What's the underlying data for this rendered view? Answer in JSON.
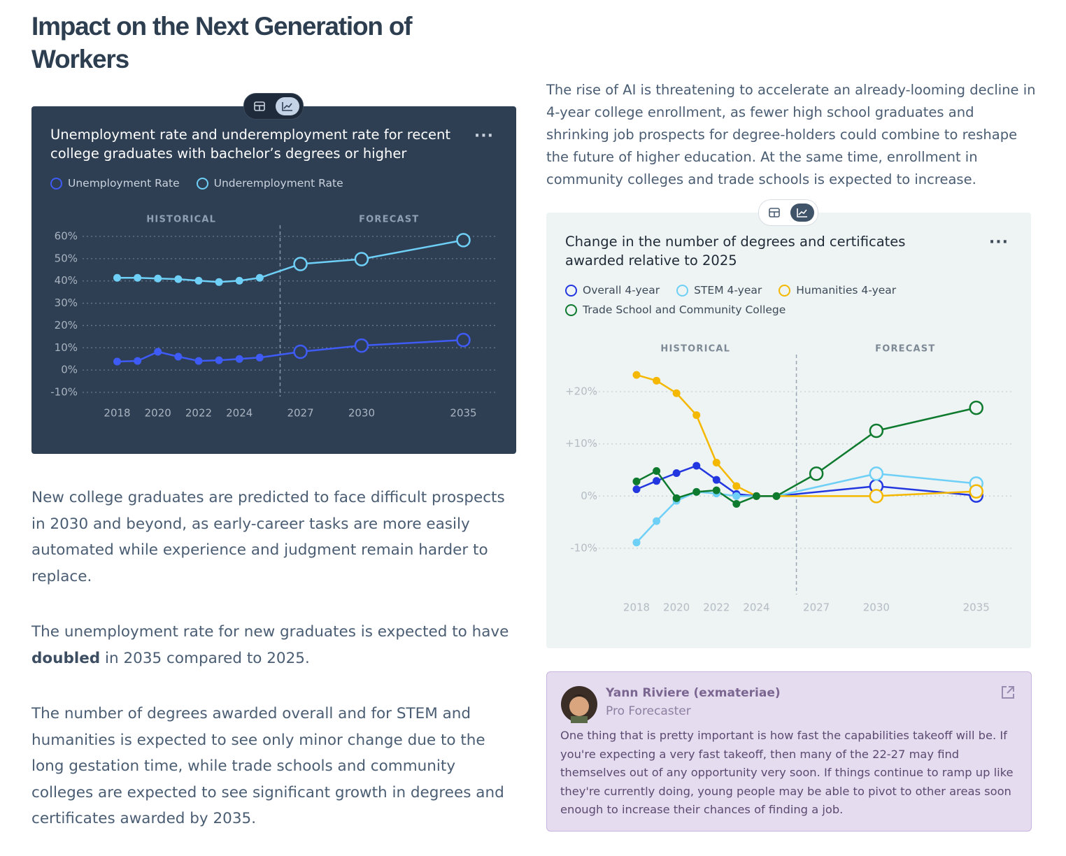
{
  "header": {
    "title": "Impact on the Next Generation of Workers"
  },
  "intro": "The rise of AI is threatening to accelerate an already-looming decline in 4-year college enrollment, as fewer high school graduates and shrinking job prospects for degree-holders could combine to reshape the future of higher education. At the same time, enrollment in community colleges and trade schools is expected to increase.",
  "paragraphs": [
    [
      "New college graduates are predicted to face difficult prospects in 2030 and beyond, as early-career tasks are more easily automated while experience and judgment remain harder to replace."
    ],
    [
      "The unemployment rate for new graduates is expected to have ",
      "doubled",
      " in 2035 compared to 2025."
    ],
    [
      "The number of degrees awarded overall and for STEM and humanities is expected to see only minor change due to the long gestation time, while trade schools and community colleges are expected to see significant growth in degrees and certificates awarded by 2035."
    ]
  ],
  "comment": {
    "author": "Yann Riviere (exmateriae)",
    "role": "Pro Forecaster",
    "text": "One thing that is pretty important is how fast the capabilities takeoff will be. If you're expecting a very fast takeoff, then many of the 22-27 may find themselves out of any opportunity very soon. If things continue to ramp up like they're currently doing, young people may be able to pivot to other areas soon enough to increase their chances of finding a job."
  },
  "chart_data": [
    {
      "type": "line",
      "title": "Unemployment rate and underemployment rate for recent college graduates with bachelor’s degrees or higher",
      "annotations": [
        "HISTORICAL",
        "FORECAST"
      ],
      "forecast_start": 2026,
      "legend": "top-left",
      "grid": true,
      "x": [
        2018,
        2019,
        2020,
        2021,
        2022,
        2023,
        2024,
        2025,
        2027,
        2030,
        2035
      ],
      "xlim": [
        2016.3,
        2036.7
      ],
      "xticks": [
        2018,
        2020,
        2022,
        2024,
        2027,
        2030,
        2035
      ],
      "ylim": [
        -10,
        60
      ],
      "yticks": [
        {
          "value": -10,
          "label": "-10%"
        },
        {
          "value": 0,
          "label": "0%"
        },
        {
          "value": 10,
          "label": "10%"
        },
        {
          "value": 20,
          "label": "20%"
        },
        {
          "value": 30,
          "label": "30%"
        },
        {
          "value": 40,
          "label": "40%"
        },
        {
          "value": 50,
          "label": "50%"
        },
        {
          "value": 60,
          "label": "60%"
        }
      ],
      "series": [
        {
          "name": "Unemployment Rate",
          "color": "#3f5bf5",
          "values": [
            3.8,
            4.1,
            8.2,
            6.0,
            4.1,
            4.4,
            5.0,
            5.6,
            8.2,
            11,
            13.5
          ]
        },
        {
          "name": "Underemployment Rate",
          "color": "#6fd0f7",
          "values": [
            41.4,
            41.4,
            41.1,
            40.8,
            40.1,
            39.5,
            40.1,
            41.4,
            47.6,
            49.8,
            58.3
          ]
        }
      ]
    },
    {
      "type": "line",
      "title": "Change in the number of degrees and certificates awarded relative to 2025",
      "annotations": [
        "HISTORICAL",
        "FORECAST"
      ],
      "forecast_start": 2026,
      "legend": "top-left",
      "grid": true,
      "xlim": [
        2015.9,
        2036.9
      ],
      "xticks": [
        2018,
        2020,
        2022,
        2024,
        2027,
        2030,
        2035
      ],
      "ylim": [
        -10,
        20
      ],
      "yticks": [
        {
          "value": -10,
          "label": "-10%"
        },
        {
          "value": 0,
          "label": "0%"
        },
        {
          "value": 10,
          "label": "+10%"
        },
        {
          "value": 20,
          "label": "+20%"
        }
      ],
      "series": [
        {
          "name": "Overall 4-year",
          "color": "#2337e0",
          "x": [
            2018,
            2019,
            2020,
            2021,
            2022,
            2023,
            2024,
            2025,
            2030,
            2035
          ],
          "values": [
            1.3,
            2.9,
            4.4,
            5.8,
            3.1,
            0.4,
            0,
            0,
            1.9,
            0.1
          ]
        },
        {
          "name": "STEM 4-year",
          "color": "#6fd0f7",
          "x": [
            2018,
            2019,
            2020,
            2021,
            2022,
            2023,
            2024,
            2025,
            2030,
            2035
          ],
          "values": [
            -8.9,
            -4.8,
            -0.9,
            0.8,
            0.5,
            0,
            0,
            0,
            4.3,
            2.4
          ]
        },
        {
          "name": "Humanities 4-year",
          "color": "#f5b800",
          "x": [
            2018,
            2019,
            2020,
            2021,
            2022,
            2023,
            2024,
            2025,
            2030,
            2035
          ],
          "values": [
            23.2,
            22.1,
            19.7,
            15.5,
            6.4,
            1.9,
            0,
            0,
            0,
            0.9
          ]
        },
        {
          "name": "Trade School and Community College",
          "color": "#0d7a2e",
          "x": [
            2018,
            2019,
            2020,
            2021,
            2022,
            2023,
            2024,
            2025,
            2027,
            2030,
            2035
          ],
          "values": [
            2.8,
            4.8,
            -0.4,
            0.8,
            1.1,
            -1.5,
            0,
            0,
            4.3,
            12.5,
            16.9
          ]
        }
      ]
    }
  ]
}
